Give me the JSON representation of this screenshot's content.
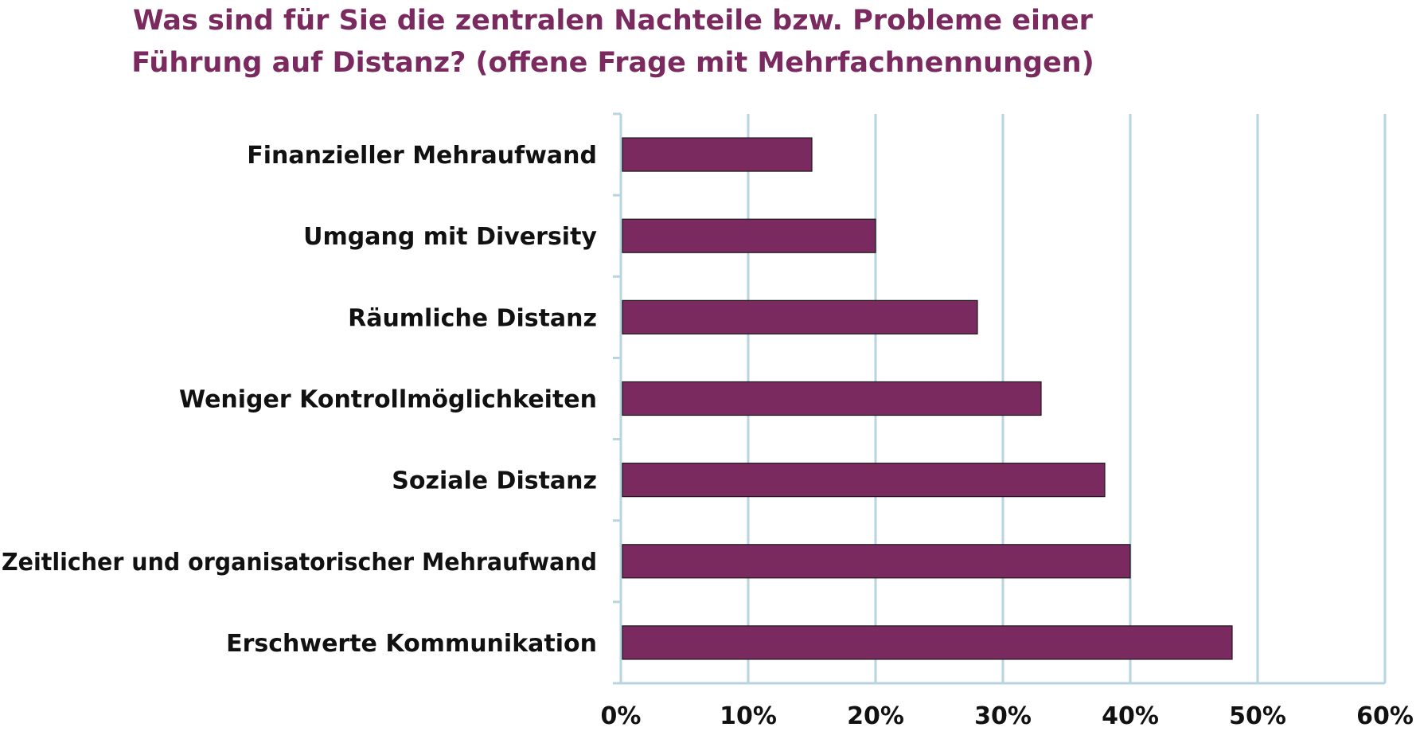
{
  "chart_data": {
    "type": "bar",
    "orientation": "horizontal",
    "title": "Was sind für Sie die zentralen Nachteile bzw. Probleme einer Führung auf Distanz? (offene Frage mit Mehrfachnennungen)",
    "categories": [
      "Finanzieller Mehraufwand",
      "Umgang mit Diversity",
      "Räumliche Distanz",
      "Weniger Kontrollmöglichkeiten",
      "Soziale Distanz",
      "Zeitlicher und organisatorischer Mehraufwand",
      "Erschwerte Kommunikation"
    ],
    "values": [
      15,
      20,
      28,
      33,
      38,
      40,
      48
    ],
    "xlim": [
      0,
      60
    ],
    "xticks": [
      "0%",
      "10%",
      "20%",
      "30%",
      "40%",
      "50%",
      "60%"
    ],
    "grid": "vertical",
    "legend": "none"
  },
  "colors": {
    "bar": "#7b2a60",
    "title": "#7b2a60",
    "grid": "#b8d4e0"
  }
}
